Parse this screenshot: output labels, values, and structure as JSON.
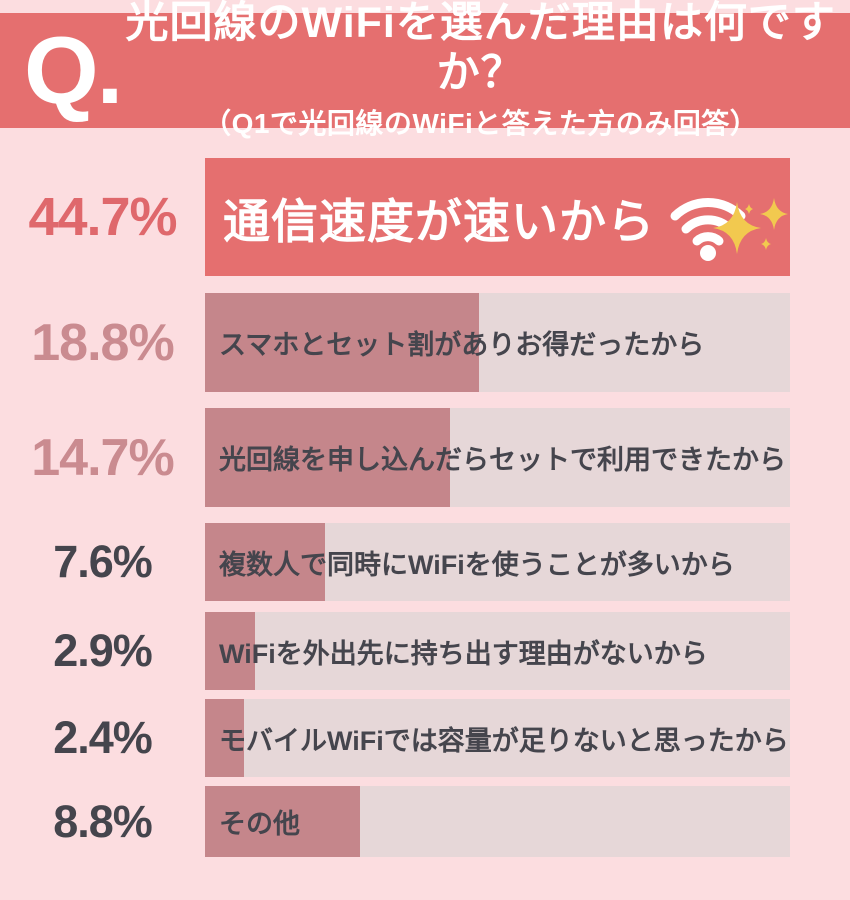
{
  "header": {
    "q_label": "Q.",
    "title": "光回線のWiFiを選んだ理由は何ですか？",
    "subtitle": "（Q1で光回線のWiFiと答えた方のみ回答）"
  },
  "colors": {
    "background": "#fcdde0",
    "accent_red": "#e56f6f",
    "accent_red_deep": "#df686c",
    "bar_fill": "#c5868b",
    "bar_track": "#e6d7d8",
    "dark_text": "#45454d",
    "muted_label": "#ca8b90",
    "sparkle_gold": "#f2c94f",
    "white": "#ffffff"
  },
  "chart_data": {
    "type": "bar",
    "orientation": "horizontal",
    "title": "光回線のWiFiを選んだ理由は何ですか？",
    "subtitle": "（Q1で光回線のWiFiと答えた方のみ回答）",
    "unit": "%",
    "xlim": [
      0,
      44.7
    ],
    "grid": false,
    "legend": false,
    "categories": [
      "通信速度が速いから",
      "スマホとセット割がありお得だったから",
      "光回線を申し込んだらセットで利用できたから",
      "複数人で同時にWiFiを使うことが多いから",
      "WiFiを外出先に持ち出す理由がないから",
      "モバイルWiFiでは容量が足りないと思ったから",
      "その他"
    ],
    "values": [
      44.7,
      18.8,
      14.7,
      7.6,
      2.9,
      2.4,
      8.8
    ],
    "rows": [
      {
        "pct_label": "44.7%",
        "value": 44.7,
        "label": "通信速度が速いから",
        "fill_pct": 100,
        "highlight": true,
        "icon": "wifi-sparkle-icon"
      },
      {
        "pct_label": "18.8%",
        "value": 18.8,
        "label": "スマホとセット割がありお得だったから",
        "fill_pct": 46.8,
        "highlight": false
      },
      {
        "pct_label": "14.7%",
        "value": 14.7,
        "label": "光回線を申し込んだらセットで利用できたから",
        "fill_pct": 41.9,
        "highlight": false
      },
      {
        "pct_label": "7.6%",
        "value": 7.6,
        "label": "複数人で同時にWiFiを使うことが多いから",
        "fill_pct": 20.5,
        "highlight": false
      },
      {
        "pct_label": "2.9%",
        "value": 2.9,
        "label": "WiFiを外出先に持ち出す理由がないから",
        "fill_pct": 8.5,
        "highlight": false
      },
      {
        "pct_label": "2.4%",
        "value": 2.4,
        "label": "モバイルWiFiでは容量が足りないと思ったから",
        "fill_pct": 6.7,
        "highlight": false
      },
      {
        "pct_label": "8.8%",
        "value": 8.8,
        "label": "その他",
        "fill_pct": 26.5,
        "highlight": false
      }
    ]
  }
}
